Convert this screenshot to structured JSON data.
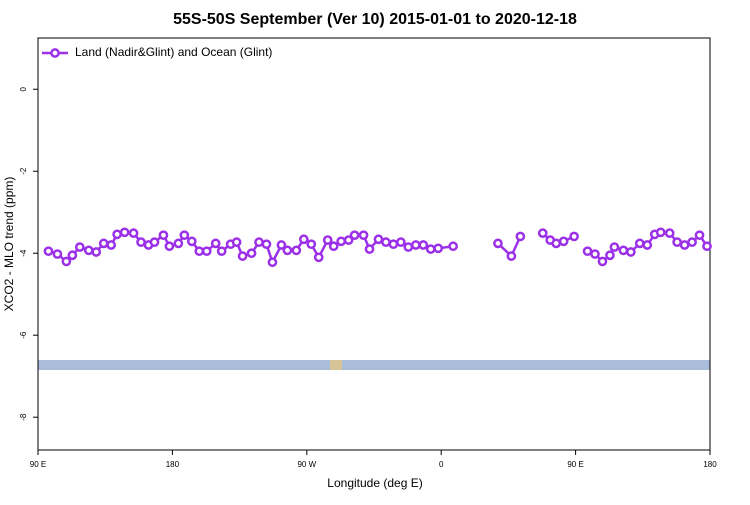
{
  "chart_data": {
    "type": "line",
    "title": "55S-50S September (Ver 10)   2015-01-01 to 2020-12-18",
    "x_label": "Longitude (deg E)",
    "y_label": "XCO2 - MLO trend (ppm)",
    "xlim": [
      90,
      540
    ],
    "ylim": [
      -8.8,
      1.25
    ],
    "xticks": [
      {
        "value": 90,
        "label": "90 E"
      },
      180,
      {
        "value": 270,
        "label": "90 W"
      },
      {
        "value": 360,
        "label": "0"
      },
      {
        "value": 450,
        "label": "90 E"
      },
      {
        "value": 540,
        "label": "180"
      }
    ],
    "yticks": [
      0,
      -2,
      -4,
      -6,
      -8
    ],
    "legend": "top-left",
    "x": [
      97,
      103,
      109,
      113,
      118,
      124,
      129,
      134,
      139,
      143,
      148,
      154,
      159,
      164,
      168,
      174,
      178,
      184,
      188,
      193,
      198,
      203,
      209,
      213,
      219,
      223,
      227,
      233,
      238,
      243,
      247,
      253,
      257,
      263,
      268,
      273,
      278,
      284,
      288,
      293,
      298,
      302,
      308,
      312,
      318,
      323,
      328,
      333,
      338,
      343,
      348,
      353,
      358,
      368,
      null,
      398,
      407,
      413,
      null,
      428,
      433,
      437,
      442,
      449,
      null,
      458,
      463,
      468,
      473,
      476,
      482,
      487,
      493,
      498,
      503,
      507,
      513,
      518,
      523,
      528,
      533,
      538
    ],
    "series": [
      {
        "name": "Land (Nadir&Glint) and Ocean (Glint)",
        "color": "#9b30e8",
        "values": [
          -3.95,
          -4.02,
          -4.2,
          -4.05,
          -3.85,
          -3.93,
          -3.97,
          -3.76,
          -3.8,
          -3.54,
          -3.49,
          -3.51,
          -3.73,
          -3.8,
          -3.73,
          -3.56,
          -3.83,
          -3.76,
          -3.56,
          -3.71,
          -3.95,
          -3.95,
          -3.76,
          -3.95,
          -3.78,
          -3.73,
          -4.07,
          -4.0,
          -3.73,
          -3.78,
          -4.22,
          -3.8,
          -3.93,
          -3.93,
          -3.66,
          -3.78,
          -4.1,
          -3.68,
          -3.83,
          -3.71,
          -3.68,
          -3.56,
          -3.56,
          -3.9,
          -3.66,
          -3.73,
          -3.78,
          -3.73,
          -3.85,
          -3.8,
          -3.8,
          -3.9,
          -3.88,
          -3.83,
          null,
          -3.76,
          -4.07,
          -3.59,
          null,
          -3.51,
          -3.68,
          -3.76,
          -3.71,
          -3.59,
          null,
          -3.95,
          -4.02,
          -4.2,
          -4.05,
          -3.85,
          -3.93,
          -3.97,
          -3.76,
          -3.8,
          -3.54,
          -3.49,
          -3.51,
          -3.73,
          -3.8,
          -3.73,
          -3.56,
          -3.83
        ]
      }
    ]
  }
}
